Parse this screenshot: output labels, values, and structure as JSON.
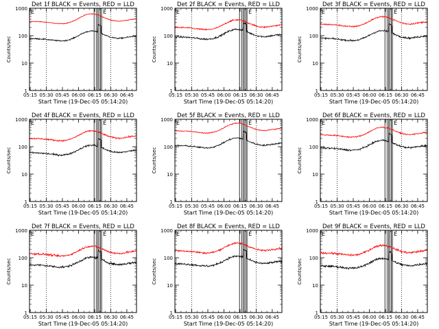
{
  "panels": [
    {
      "title": "Det 1f BLACK = Events, RED = LLD",
      "events_base": 78,
      "lld_base": 330,
      "events_noise": 0.05,
      "lld_noise": 0.03
    },
    {
      "title": "Det 2f BLACK = Events, RED = LLD",
      "events_base": 90,
      "lld_base": 200,
      "events_noise": 0.07,
      "lld_noise": 0.06
    },
    {
      "title": "Det 3f BLACK = Events, RED = LLD",
      "events_base": 80,
      "lld_base": 260,
      "events_noise": 0.07,
      "lld_noise": 0.06
    },
    {
      "title": "Det 4f BLACK = Events, RED = LLD",
      "events_base": 60,
      "lld_base": 200,
      "events_noise": 0.07,
      "lld_noise": 0.06
    },
    {
      "title": "Det 5f BLACK = Events, RED = LLD",
      "events_base": 110,
      "lld_base": 380,
      "events_noise": 0.06,
      "lld_noise": 0.04
    },
    {
      "title": "Det 6f BLACK = Events, RED = LLD",
      "events_base": 90,
      "lld_base": 270,
      "events_noise": 0.07,
      "lld_noise": 0.05
    },
    {
      "title": "Det 7f BLACK = Events, RED = LLD",
      "events_base": 55,
      "lld_base": 140,
      "events_noise": 0.09,
      "lld_noise": 0.08
    },
    {
      "title": "Det 8f BLACK = Events, RED = LLD",
      "events_base": 60,
      "lld_base": 180,
      "events_noise": 0.08,
      "lld_noise": 0.07
    },
    {
      "title": "Det 9f BLACK = Events, RED = LLD",
      "events_base": 50,
      "lld_base": 150,
      "events_noise": 0.09,
      "lld_noise": 0.08
    }
  ],
  "xlabel": "Start Time (19-Dec-05 05:14:20)",
  "ylabel": "Counts/sec",
  "x_ticks": [
    "05:15",
    "05:30",
    "05:45",
    "06:00",
    "06:15",
    "06:30",
    "06:45"
  ],
  "x_tick_minutes": [
    315,
    330,
    345,
    360,
    375,
    390,
    405
  ],
  "y_ticks": [
    "1",
    "10",
    "100",
    "1000"
  ],
  "y_tick_values": [
    1,
    10,
    100,
    1000
  ],
  "flag_label": "E",
  "colors": {
    "events": "#000000",
    "lld": "#ff0000",
    "axes": "#000000"
  },
  "chart_data": {
    "type": "line",
    "y_scale": "log",
    "ylim": [
      1,
      1000
    ],
    "xlim_minutes": [
      314.33,
      414
    ],
    "dotted_vlines_minutes": [
      330,
      390
    ],
    "flag_bars_minutes": [
      [
        374.5,
        376.5
      ],
      [
        378,
        379
      ],
      [
        380.5,
        381.5
      ]
    ],
    "series": [
      {
        "name": "BLACK = Events",
        "color": "#000000"
      },
      {
        "name": "RED = LLD",
        "color": "#ff0000"
      }
    ]
  }
}
